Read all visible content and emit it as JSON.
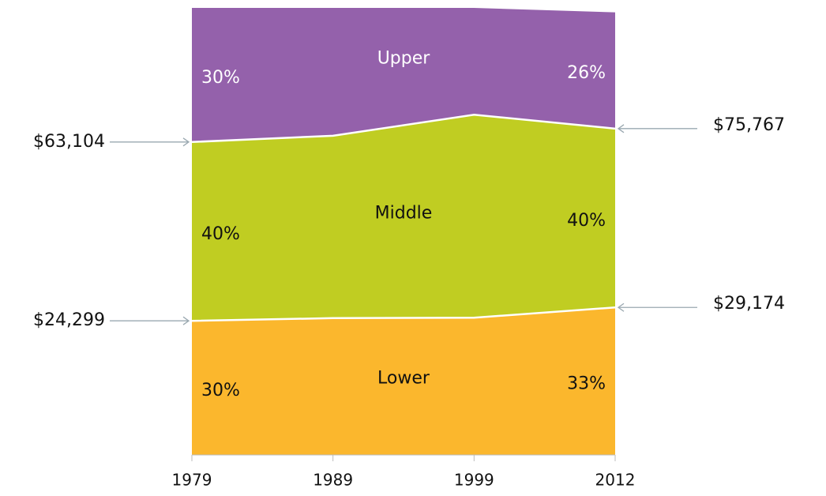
{
  "chart_data": {
    "type": "stacked_area",
    "categories": [
      "1979",
      "1989",
      "1999",
      "2012"
    ],
    "series": [
      {
        "name": "Lower",
        "color": "#fbb72d",
        "values": [
          30,
          30.6,
          30.7,
          33
        ],
        "value_labels": [
          "30%",
          null,
          null,
          "33%"
        ]
      },
      {
        "name": "Middle",
        "color": "#c0cd22",
        "values": [
          40,
          40.8,
          45.4,
          40
        ],
        "value_labels": [
          "40%",
          null,
          null,
          "40%"
        ]
      },
      {
        "name": "Upper",
        "color": "#9461ab",
        "values": [
          30,
          28.6,
          23.9,
          26
        ],
        "value_labels": [
          "30%",
          null,
          null,
          "26%"
        ]
      }
    ],
    "ylim": [
      0,
      100
    ],
    "annotations": [
      "$24,299",
      "$63,104",
      "$29,174",
      "$75,767"
    ]
  }
}
